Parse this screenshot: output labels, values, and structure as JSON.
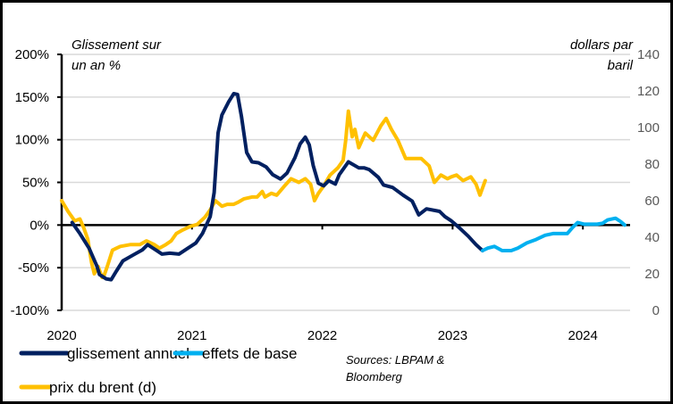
{
  "chart_data": {
    "type": "line",
    "title": "",
    "left_axis": {
      "title_lines": [
        "Glissement sur",
        "un an %"
      ],
      "ticks": [
        "200%",
        "150%",
        "100%",
        "50%",
        "0%",
        "-50%",
        "-100%"
      ],
      "tick_values": [
        200,
        150,
        100,
        50,
        0,
        -50,
        -100
      ],
      "ylim": [
        -100,
        200
      ]
    },
    "right_axis": {
      "title_lines": [
        "dollars par",
        "baril"
      ],
      "ticks": [
        "140",
        "120",
        "100",
        "80",
        "60",
        "40",
        "20",
        "0"
      ],
      "tick_values": [
        140,
        120,
        100,
        80,
        60,
        40,
        20,
        0
      ],
      "ylim": [
        0,
        140
      ]
    },
    "x_axis": {
      "ticks": [
        "2020",
        "2021",
        "2022",
        "2023",
        "2024"
      ],
      "tick_values": [
        2020,
        2021,
        2022,
        2023,
        2024
      ],
      "xlim": [
        2020,
        2024.35
      ]
    },
    "grid": true,
    "legend_position": "bottom",
    "series": [
      {
        "name": "glissement annuel",
        "axis": "left",
        "color": "#002060",
        "x": [
          2020.08,
          2020.14,
          2020.21,
          2020.27,
          2020.29,
          2020.34,
          2020.38,
          2020.42,
          2020.47,
          2020.55,
          2020.62,
          2020.66,
          2020.72,
          2020.77,
          2020.83,
          2020.9,
          2020.97,
          2021.03,
          2021.08,
          2021.14,
          2021.17,
          2021.2,
          2021.23,
          2021.28,
          2021.32,
          2021.35,
          2021.38,
          2021.42,
          2021.46,
          2021.51,
          2021.57,
          2021.62,
          2021.68,
          2021.73,
          2021.79,
          2021.83,
          2021.87,
          2021.9,
          2021.93,
          2021.97,
          2022.01,
          2022.05,
          2022.1,
          2022.13,
          2022.2,
          2022.28,
          2022.32,
          2022.36,
          2022.43,
          2022.47,
          2022.54,
          2022.62,
          2022.69,
          2022.74,
          2022.8,
          2022.9,
          2022.94,
          2022.99,
          2023.05,
          2023.12,
          2023.18,
          2023.23
        ],
        "values": [
          3,
          -10,
          -27,
          -48,
          -58,
          -63,
          -64,
          -54,
          -42,
          -35,
          -29,
          -23,
          -29,
          -34,
          -33,
          -34,
          -27,
          -21,
          -10,
          10,
          38,
          108,
          129,
          144,
          154,
          153,
          127,
          85,
          74,
          73,
          68,
          59,
          54,
          61,
          79,
          95,
          103,
          94,
          70,
          49,
          46,
          52,
          48,
          59,
          74,
          67,
          67,
          65,
          56,
          47,
          44,
          35,
          28,
          12,
          19,
          16,
          10,
          5,
          -3,
          -13,
          -23,
          -30
        ]
      },
      {
        "name": "effets de base",
        "axis": "left",
        "color": "#00B0F0",
        "x": [
          2023.23,
          2023.27,
          2023.32,
          2023.38,
          2023.45,
          2023.5,
          2023.57,
          2023.64,
          2023.71,
          2023.77,
          2023.84,
          2023.88,
          2023.92,
          2023.96,
          2024.01,
          2024.07,
          2024.11,
          2024.15,
          2024.19,
          2024.25,
          2024.29,
          2024.32
        ],
        "values": [
          -30,
          -27,
          -25,
          -30,
          -30,
          -27,
          -21,
          -17,
          -12,
          -10,
          -10,
          -10,
          -3,
          3,
          1,
          1,
          1,
          2,
          6,
          8,
          4,
          0
        ]
      },
      {
        "name": "prix du brent (d)",
        "axis": "right",
        "color": "#FFC000",
        "x": [
          2020.0,
          2020.05,
          2020.1,
          2020.14,
          2020.17,
          2020.2,
          2020.23,
          2020.25,
          2020.28,
          2020.31,
          2020.32,
          2020.35,
          2020.39,
          2020.45,
          2020.53,
          2020.6,
          2020.65,
          2020.71,
          2020.75,
          2020.8,
          2020.84,
          2020.88,
          2020.93,
          2020.99,
          2021.04,
          2021.1,
          2021.14,
          2021.18,
          2021.23,
          2021.27,
          2021.32,
          2021.35,
          2021.4,
          2021.46,
          2021.5,
          2021.54,
          2021.56,
          2021.61,
          2021.65,
          2021.71,
          2021.76,
          2021.82,
          2021.87,
          2021.91,
          2021.94,
          2021.97,
          2022.01,
          2022.06,
          2022.12,
          2022.16,
          2022.18,
          2022.2,
          2022.23,
          2022.25,
          2022.28,
          2022.33,
          2022.39,
          2022.45,
          2022.49,
          2022.53,
          2022.58,
          2022.64,
          2022.69,
          2022.76,
          2022.82,
          2022.86,
          2022.91,
          2022.96,
          2022.99,
          2023.03,
          2023.08,
          2023.14,
          2023.18,
          2023.21,
          2023.25
        ],
        "values": [
          60,
          54,
          49,
          50,
          45,
          39,
          26,
          20,
          24,
          18,
          18,
          24,
          33,
          35,
          36,
          36,
          38,
          36,
          34,
          36,
          38,
          42,
          44,
          46,
          47,
          51,
          55,
          60,
          57,
          58,
          58,
          59,
          61,
          62,
          62,
          65,
          62,
          64,
          63,
          68,
          72,
          70,
          72,
          69,
          60,
          64,
          68,
          74,
          78,
          82,
          93,
          109,
          95,
          99,
          89,
          97,
          93,
          101,
          105,
          99,
          93,
          83,
          83,
          83,
          79,
          70,
          74,
          72,
          73,
          74,
          71,
          73,
          69,
          63,
          71
        ]
      }
    ],
    "annotations": [
      "Sources: LBPAM &",
      "Bloomberg"
    ]
  }
}
